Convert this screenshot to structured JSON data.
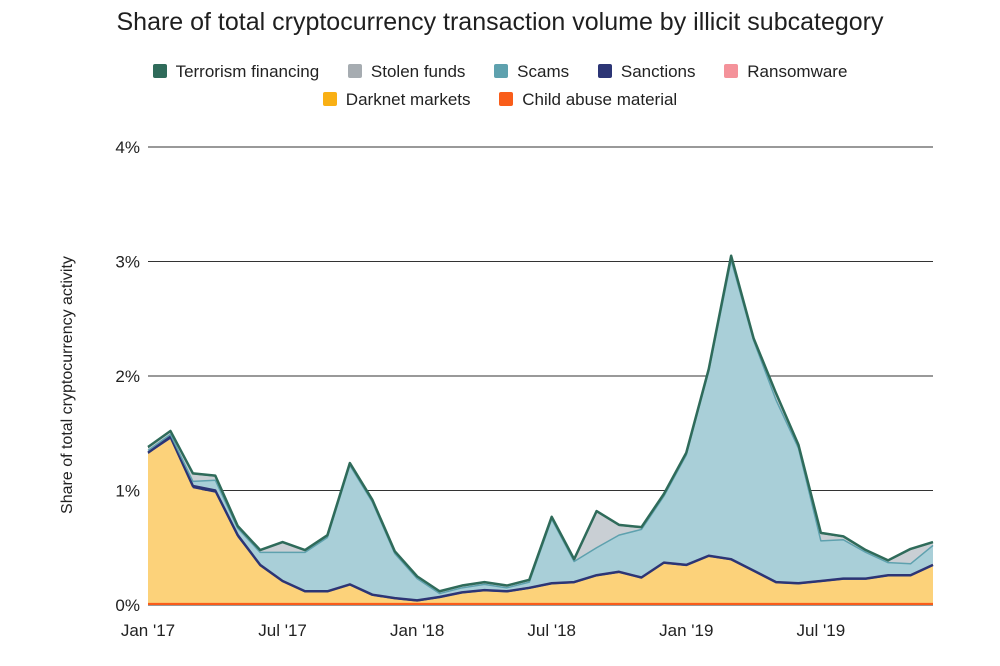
{
  "chart_data": {
    "type": "area",
    "title": "Share of total cryptocurrency transaction volume by illicit subcategory",
    "ylabel": "Share of total cryptocurrency activity",
    "xlabel": "",
    "ylim": [
      0,
      4
    ],
    "y_ticks": [
      "0%",
      "1%",
      "2%",
      "3%",
      "4%"
    ],
    "x_ticks": [
      "Jan '17",
      "Jul '17",
      "Jan '18",
      "Jul '18",
      "Jan '19",
      "Jul '19"
    ],
    "grid": true,
    "stacked": true,
    "legend_position": "top",
    "x": [
      "2017-01",
      "2017-02",
      "2017-03",
      "2017-04",
      "2017-05",
      "2017-06",
      "2017-07",
      "2017-08",
      "2017-09",
      "2017-10",
      "2017-11",
      "2017-12",
      "2018-01",
      "2018-02",
      "2018-03",
      "2018-04",
      "2018-05",
      "2018-06",
      "2018-07",
      "2018-08",
      "2018-09",
      "2018-10",
      "2018-11",
      "2018-12",
      "2019-01",
      "2019-02",
      "2019-03",
      "2019-04",
      "2019-05",
      "2019-06",
      "2019-07",
      "2019-08",
      "2019-09",
      "2019-10",
      "2019-11",
      "2019-12"
    ],
    "series": [
      {
        "name": "Child abuse material",
        "color": "#f95d1a",
        "values": [
          0.01,
          0.01,
          0.01,
          0.01,
          0.01,
          0.01,
          0.01,
          0.01,
          0.01,
          0.01,
          0.01,
          0.01,
          0.01,
          0.01,
          0.01,
          0.01,
          0.01,
          0.01,
          0.01,
          0.01,
          0.01,
          0.01,
          0.01,
          0.01,
          0.01,
          0.01,
          0.01,
          0.01,
          0.01,
          0.01,
          0.01,
          0.01,
          0.01,
          0.01,
          0.01,
          0.01
        ]
      },
      {
        "name": "Darknet markets",
        "color": "#fcd27a",
        "values": [
          1.31,
          1.44,
          1.01,
          0.97,
          0.58,
          0.33,
          0.19,
          0.1,
          0.1,
          0.16,
          0.07,
          0.04,
          0.02,
          0.05,
          0.09,
          0.11,
          0.1,
          0.13,
          0.17,
          0.18,
          0.24,
          0.27,
          0.22,
          0.35,
          0.33,
          0.41,
          0.38,
          0.28,
          0.18,
          0.17,
          0.19,
          0.21,
          0.21,
          0.24,
          0.24,
          0.33
        ]
      },
      {
        "name": "Sanctions",
        "color": "#2c3575",
        "values": [
          0.01,
          0.02,
          0.02,
          0.02,
          0.02,
          0.01,
          0.01,
          0.01,
          0.01,
          0.01,
          0.01,
          0.01,
          0.01,
          0.01,
          0.01,
          0.01,
          0.01,
          0.01,
          0.01,
          0.01,
          0.01,
          0.01,
          0.01,
          0.01,
          0.01,
          0.01,
          0.01,
          0.01,
          0.01,
          0.01,
          0.01,
          0.01,
          0.01,
          0.01,
          0.01,
          0.01
        ]
      },
      {
        "name": "Ransomware",
        "color": "#f4929a",
        "values": [
          0.01,
          0.01,
          0.01,
          0.01,
          0.01,
          0.01,
          0.01,
          0.01,
          0.01,
          0.01,
          0.01,
          0.01,
          0.01,
          0.01,
          0.01,
          0.01,
          0.01,
          0.01,
          0.01,
          0.01,
          0.01,
          0.01,
          0.01,
          0.01,
          0.01,
          0.01,
          0.01,
          0.01,
          0.01,
          0.01,
          0.01,
          0.01,
          0.01,
          0.01,
          0.01,
          0.01
        ]
      },
      {
        "name": "Scams",
        "color": "#a9cfd8",
        "values": [
          0.01,
          0.01,
          0.03,
          0.08,
          0.05,
          0.1,
          0.24,
          0.33,
          0.46,
          1.03,
          0.8,
          0.38,
          0.18,
          0.02,
          0.03,
          0.04,
          0.02,
          0.04,
          0.55,
          0.17,
          0.23,
          0.31,
          0.41,
          0.57,
          0.95,
          1.6,
          2.6,
          2.0,
          1.58,
          1.17,
          0.34,
          0.33,
          0.22,
          0.1,
          0.09,
          0.16
        ]
      },
      {
        "name": "Stolen funds",
        "color": "#c9cfd4",
        "values": [
          0.02,
          0.02,
          0.06,
          0.03,
          0.01,
          0.01,
          0.08,
          0.01,
          0.01,
          0.01,
          0.01,
          0.01,
          0.01,
          0.01,
          0.01,
          0.01,
          0.01,
          0.01,
          0.01,
          0.01,
          0.31,
          0.08,
          0.01,
          0.01,
          0.01,
          0.01,
          0.03,
          0.01,
          0.05,
          0.02,
          0.06,
          0.02,
          0.01,
          0.01,
          0.12,
          0.02
        ]
      },
      {
        "name": "Terrorism financing",
        "color": "#2f6b5a",
        "values": [
          0.01,
          0.01,
          0.01,
          0.01,
          0.01,
          0.01,
          0.01,
          0.01,
          0.01,
          0.01,
          0.01,
          0.01,
          0.01,
          0.01,
          0.01,
          0.01,
          0.01,
          0.01,
          0.01,
          0.01,
          0.01,
          0.01,
          0.01,
          0.01,
          0.01,
          0.01,
          0.01,
          0.01,
          0.01,
          0.01,
          0.01,
          0.01,
          0.01,
          0.01,
          0.01,
          0.01
        ]
      }
    ]
  },
  "legend": {
    "row1": [
      {
        "label": "Terrorism financing",
        "color": "#2f6b5a"
      },
      {
        "label": "Stolen funds",
        "color": "#a6acb1"
      },
      {
        "label": "Scams",
        "color": "#5ea1ae"
      },
      {
        "label": "Sanctions",
        "color": "#2c3575"
      },
      {
        "label": "Ransomware",
        "color": "#f4929a"
      }
    ],
    "row2": [
      {
        "label": "Darknet markets",
        "color": "#f9b014"
      },
      {
        "label": "Child abuse material",
        "color": "#f95d1a"
      }
    ]
  }
}
